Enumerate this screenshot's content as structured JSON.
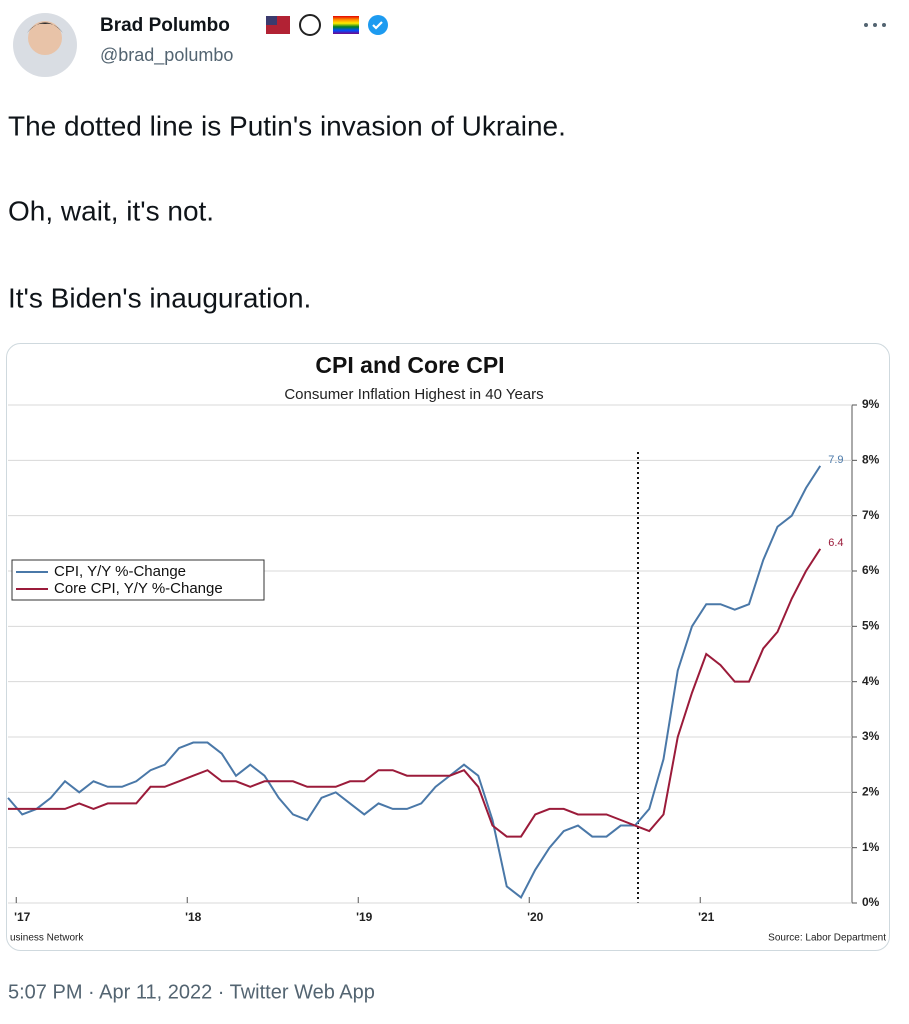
{
  "tweet": {
    "name": "Brad Polumbo",
    "handle": "@brad_polumbo",
    "lines": [
      "The dotted line is Putin's invasion of Ukraine.",
      "Oh, wait, it's not.",
      "It's Biden's inauguration."
    ],
    "timestamp": "5:07 PM · Apr 11, 2022 · Twitter Web App"
  },
  "chart_data": {
    "type": "line",
    "title": "CPI and Core CPI",
    "subtitle": "Consumer Inflation Highest in 40 Years",
    "credit": "usiness Network",
    "source": "Source: Labor Department",
    "categories": [
      null,
      "'17",
      null,
      null,
      null,
      null,
      null,
      null,
      null,
      null,
      null,
      null,
      null,
      "'18",
      null,
      null,
      null,
      null,
      null,
      null,
      null,
      null,
      null,
      null,
      null,
      "'19",
      null,
      null,
      null,
      null,
      null,
      null,
      null,
      null,
      null,
      null,
      null,
      "'20",
      null,
      null,
      null,
      null,
      null,
      null,
      null,
      null,
      null,
      null,
      null,
      "'21",
      null,
      null,
      null,
      null,
      null,
      null,
      null,
      null
    ],
    "series": [
      {
        "name": "CPI, Y/Y %-Change",
        "color": "#4a78a8",
        "values": [
          1.9,
          1.6,
          1.7,
          1.9,
          2.2,
          2.0,
          2.2,
          2.1,
          2.1,
          2.2,
          2.4,
          2.5,
          2.8,
          2.9,
          2.9,
          2.7,
          2.3,
          2.5,
          2.3,
          1.9,
          1.6,
          1.5,
          1.9,
          2.0,
          1.8,
          1.6,
          1.8,
          1.7,
          1.7,
          1.8,
          2.1,
          2.3,
          2.5,
          2.3,
          1.5,
          0.3,
          0.1,
          0.6,
          1.0,
          1.3,
          1.4,
          1.2,
          1.2,
          1.4,
          1.4,
          1.7,
          2.6,
          4.2,
          5.0,
          5.4,
          5.4,
          5.3,
          5.4,
          6.2,
          6.8,
          7.0,
          7.5,
          7.9
        ]
      },
      {
        "name": "Core CPI, Y/Y %-Change",
        "color": "#9b1b3a",
        "values": [
          1.7,
          1.7,
          1.7,
          1.7,
          1.7,
          1.8,
          1.7,
          1.8,
          1.8,
          1.8,
          2.1,
          2.1,
          2.2,
          2.3,
          2.4,
          2.2,
          2.2,
          2.1,
          2.2,
          2.2,
          2.2,
          2.1,
          2.1,
          2.1,
          2.2,
          2.2,
          2.4,
          2.4,
          2.3,
          2.3,
          2.3,
          2.3,
          2.4,
          2.1,
          1.4,
          1.2,
          1.2,
          1.6,
          1.7,
          1.7,
          1.6,
          1.6,
          1.6,
          1.5,
          1.4,
          1.3,
          1.6,
          3.0,
          3.8,
          4.5,
          4.3,
          4.0,
          4.0,
          4.6,
          4.9,
          5.5,
          6.0,
          6.4
        ]
      }
    ],
    "ylim": [
      0,
      9
    ],
    "yticks": [
      {
        "value": 0,
        "label": "0%"
      },
      {
        "value": 1,
        "label": "1%"
      },
      {
        "value": 2,
        "label": "2%"
      },
      {
        "value": 3,
        "label": "3%"
      },
      {
        "value": 4,
        "label": "4%"
      },
      {
        "value": 5,
        "label": "5%"
      },
      {
        "value": 6,
        "label": "6%"
      },
      {
        "value": 7,
        "label": "7%"
      },
      {
        "value": 8,
        "label": "8%"
      },
      {
        "value": 9,
        "label": "9%"
      }
    ],
    "grid": true,
    "legend": "left"
  }
}
